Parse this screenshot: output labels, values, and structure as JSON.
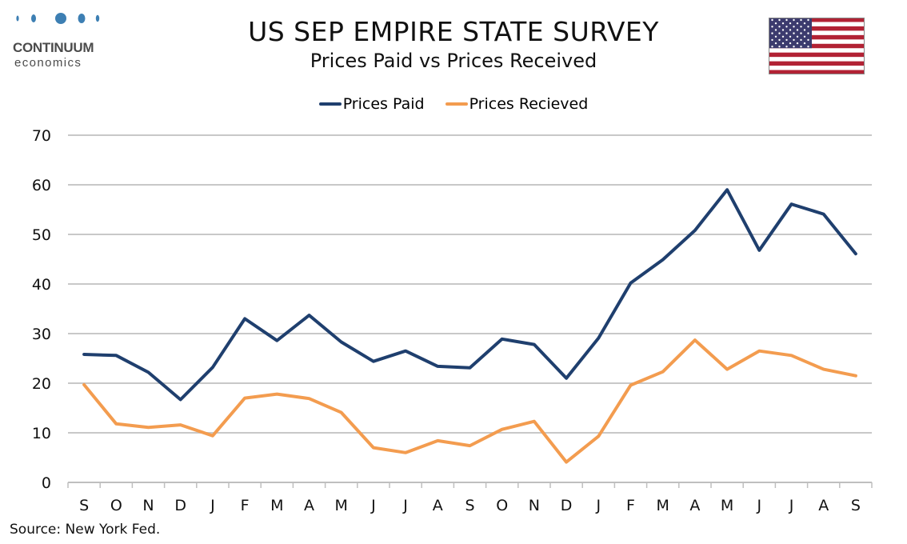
{
  "header": {
    "title": "US SEP EMPIRE STATE SURVEY",
    "subtitle": "Prices Paid vs Prices Received"
  },
  "logo": {
    "line1": "CONTINUUM",
    "line2": "economics",
    "color": "#3d7fb3"
  },
  "flag": {
    "icon": "us-flag-icon"
  },
  "footer": {
    "source": "Source: New York Fed."
  },
  "chart_data": {
    "type": "line",
    "categories": [
      "S",
      "O",
      "N",
      "D",
      "J",
      "F",
      "M",
      "A",
      "M",
      "J",
      "J",
      "A",
      "S",
      "O",
      "N",
      "D",
      "J",
      "F",
      "M",
      "A",
      "M",
      "J",
      "J",
      "A",
      "S"
    ],
    "series": [
      {
        "name": "Prices Paid",
        "color": "#1f3f6e",
        "values": [
          25.8,
          25.6,
          22.2,
          16.7,
          23.2,
          33.0,
          28.6,
          33.7,
          28.3,
          24.4,
          26.5,
          23.4,
          23.1,
          28.9,
          27.8,
          21.0,
          29.1,
          40.2,
          44.9,
          50.8,
          59.0,
          46.8,
          56.1,
          54.1,
          46.1
        ]
      },
      {
        "name": "Prices Recieved",
        "color": "#f39c4f",
        "values": [
          19.7,
          11.8,
          11.1,
          11.6,
          9.4,
          17.0,
          17.8,
          16.9,
          14.1,
          7.0,
          6.0,
          8.4,
          7.4,
          10.7,
          12.3,
          4.1,
          9.3,
          19.6,
          22.3,
          28.7,
          22.8,
          26.5,
          25.6,
          22.8,
          21.5
        ]
      }
    ],
    "yticks": [
      0,
      10,
      20,
      30,
      40,
      50,
      60,
      70
    ],
    "ylim": [
      0,
      70
    ],
    "grid": true,
    "legend_position": "top-center",
    "xlabel": "",
    "ylabel": ""
  }
}
